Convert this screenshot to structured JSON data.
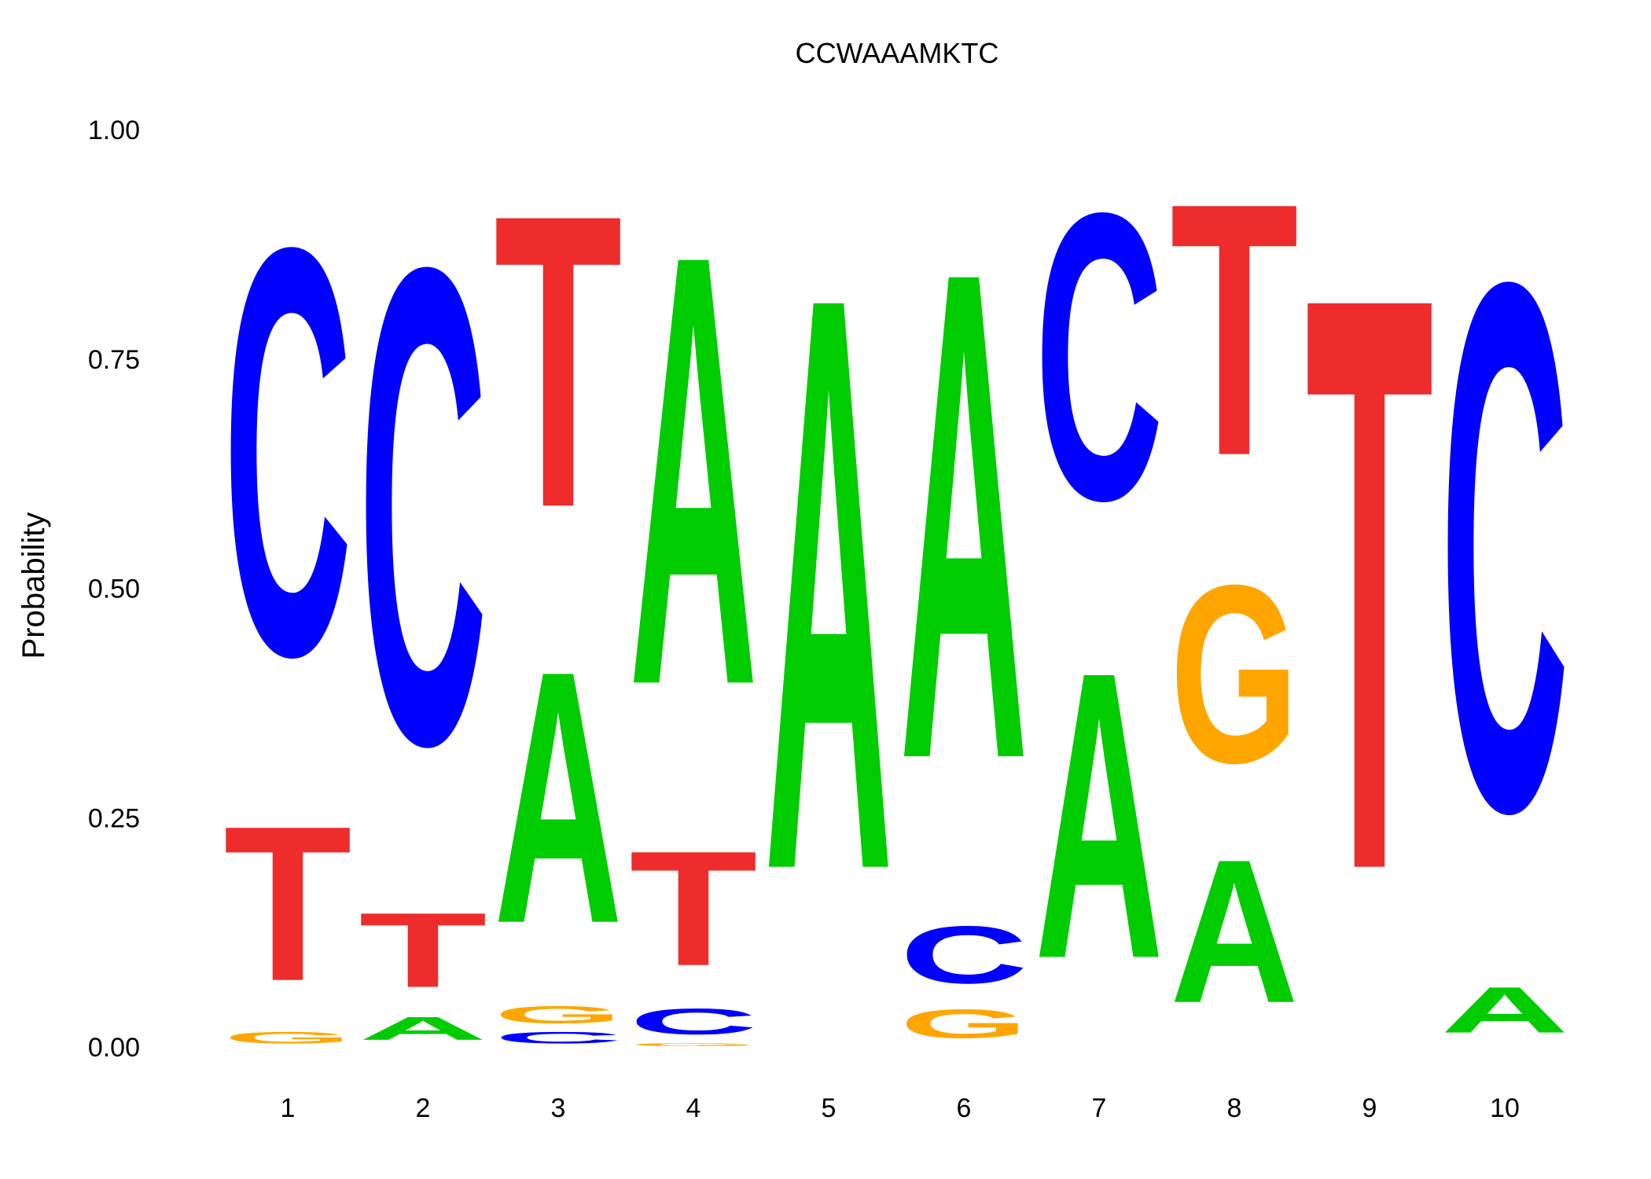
{
  "chart_data": {
    "type": "sequence-logo",
    "title": "CCWAAAMKTC",
    "ylabel": "Probability",
    "xlabel": "",
    "ylim": [
      0,
      1
    ],
    "yticks": [
      "0.00",
      "0.25",
      "0.50",
      "0.75",
      "1.00"
    ],
    "ytick_values": [
      0,
      0.25,
      0.5,
      0.75,
      1.0
    ],
    "positions": [
      "1",
      "2",
      "3",
      "4",
      "5",
      "6",
      "7",
      "8",
      "9",
      "10"
    ],
    "colors": {
      "A": "#00cc00",
      "C": "#0000ff",
      "G": "#ffa500",
      "T": "#ee2c2c"
    },
    "columns": [
      {
        "position": "1",
        "stack": [
          {
            "letter": "G",
            "p": 0.02
          },
          {
            "letter": "T",
            "p": 0.27
          },
          {
            "letter": "C",
            "p": 0.71
          }
        ]
      },
      {
        "position": "2",
        "stack": [
          {
            "letter": "A",
            "p": 0.04
          },
          {
            "letter": "T",
            "p": 0.13
          },
          {
            "letter": "C",
            "p": 0.83
          }
        ]
      },
      {
        "position": "3",
        "stack": [
          {
            "letter": "C",
            "p": 0.02
          },
          {
            "letter": "G",
            "p": 0.03
          },
          {
            "letter": "A",
            "p": 0.44
          },
          {
            "letter": "T",
            "p": 0.51
          }
        ]
      },
      {
        "position": "4",
        "stack": [
          {
            "letter": "G",
            "p": 0.005
          },
          {
            "letter": "C",
            "p": 0.045
          },
          {
            "letter": "T",
            "p": 0.2
          },
          {
            "letter": "A",
            "p": 0.75
          }
        ]
      },
      {
        "position": "5",
        "stack": [
          {
            "letter": "A",
            "p": 1.0
          }
        ]
      },
      {
        "position": "6",
        "stack": [
          {
            "letter": "G",
            "p": 0.05
          },
          {
            "letter": "C",
            "p": 0.1
          },
          {
            "letter": "A",
            "p": 0.85
          }
        ]
      },
      {
        "position": "7",
        "stack": [
          {
            "letter": "A",
            "p": 0.5
          },
          {
            "letter": "C",
            "p": 0.5
          }
        ]
      },
      {
        "position": "8",
        "stack": [
          {
            "letter": "A",
            "p": 0.25
          },
          {
            "letter": "G",
            "p": 0.31
          },
          {
            "letter": "T",
            "p": 0.44
          }
        ]
      },
      {
        "position": "9",
        "stack": [
          {
            "letter": "T",
            "p": 1.0
          }
        ]
      },
      {
        "position": "10",
        "stack": [
          {
            "letter": "A",
            "p": 0.08
          },
          {
            "letter": "C",
            "p": 0.92
          }
        ]
      }
    ]
  }
}
